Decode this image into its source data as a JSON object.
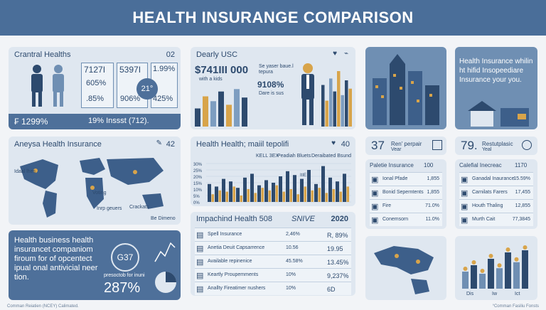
{
  "header": {
    "title": "HEALTH INSURANGE COMPARISON"
  },
  "p1": {
    "title": "Crantral Healths",
    "corner": "02",
    "stats": [
      "7127I",
      "605%",
      ".85%",
      "5397I",
      "906%",
      "1.99%",
      "425%"
    ],
    "badge": "21°",
    "footer_left": "₣ 1299%",
    "footer_right": "19% Inssst (712)."
  },
  "p2": {
    "title": "Dearly USC",
    "big": "$741III 000",
    "sub": "with a kids",
    "note": "Se yaser baue.l",
    "note2": "tepura",
    "mid": "9108%",
    "mid_sub": "Dare is sus"
  },
  "p3": {
    "title": "Health Insurance whilin ht hifid Insopeediare Insurance your you."
  },
  "p4": {
    "title": "Aneysa Health Insurance",
    "corner": "42",
    "labels": [
      "Idaal lhes",
      "Voting",
      "Inrp geuers",
      "Crackats",
      "Be Dimeno"
    ]
  },
  "p5": {
    "title": "Health Health; maiil tepolifi",
    "corner": "40",
    "legend": [
      "KELL 3EX",
      "Peadiah Bluets",
      "Deraibated Bsund"
    ],
    "yticks": [
      "30%",
      "25%",
      "20%",
      "15%",
      "10%",
      "5%",
      "0%"
    ],
    "tag": "ItIE",
    "series_a": [
      14,
      12,
      18,
      16,
      11,
      19,
      22,
      13,
      17,
      15,
      20,
      24,
      21,
      18,
      25,
      14,
      28,
      19,
      16,
      22
    ],
    "series_b": [
      6,
      9,
      8,
      12,
      5,
      10,
      7,
      11,
      9,
      13,
      8,
      10,
      6,
      12,
      9,
      11,
      7,
      10,
      8,
      12
    ]
  },
  "p6": {
    "number": "37",
    "label": "Ren' perpair",
    "sub": "Vear"
  },
  "p7": {
    "number": "79.",
    "label": "Restutplasic",
    "sub": "Yeal"
  },
  "p8": {
    "title": "Paletie Insurance",
    "corner": "100",
    "rows": [
      [
        "Ional Pfade",
        "1,855"
      ],
      [
        "Bonid Seperntents",
        "1,855"
      ],
      [
        "Fire",
        "71.0%"
      ],
      [
        "Conemsorn",
        "11.0%"
      ]
    ]
  },
  "p9": {
    "title": "Calefial Inecreac",
    "corner": "1170",
    "rows": [
      [
        "Ganadal Inaurance",
        "15.59%"
      ],
      [
        "Carnilats Farers",
        "17,455"
      ],
      [
        "Houth Thaling",
        "12,855"
      ],
      [
        "Murth Cait",
        "77,3845"
      ]
    ]
  },
  "p10": {
    "title": "Impachind Health 508",
    "brand": "SNIVE",
    "year": "2020",
    "rows": [
      [
        "Spell Insurance",
        "2,46%",
        "R, 89%"
      ],
      [
        "Anetia Deuit Capsarrence",
        "10.56",
        "19.95"
      ],
      [
        "Available repinenice",
        "45.58%",
        "13.45%"
      ],
      [
        "Keartly Proupemments",
        "10%",
        "9,237%"
      ],
      [
        "Anallty Fireatimer nushers",
        "10%",
        "6D"
      ]
    ]
  },
  "p11": {
    "text": "Health business health insurancet companiom firoum for of opcentect ipual onal antivicial neer tion.",
    "badge": "G37",
    "caption": "presoctob for inuni",
    "big": "287%"
  },
  "p13": {
    "labels": [
      "Dis",
      "Iw",
      "Ict"
    ],
    "values": [
      40,
      55,
      35,
      70,
      48,
      85,
      62,
      90
    ]
  },
  "footer": {
    "left": "Comman Reiatien (NCEY)     Calimated.",
    "right": "°Comman Fasiliu Fonsts"
  },
  "p1_bars": [],
  "p2_bars": {
    "left": [
      30,
      50,
      42,
      58,
      36,
      62,
      48
    ],
    "right": [
      45,
      28,
      52,
      38,
      60,
      34,
      50,
      41
    ],
    "colors": [
      "#2d4a6e",
      "#d8a44a",
      "#7d9dc0"
    ]
  }
}
